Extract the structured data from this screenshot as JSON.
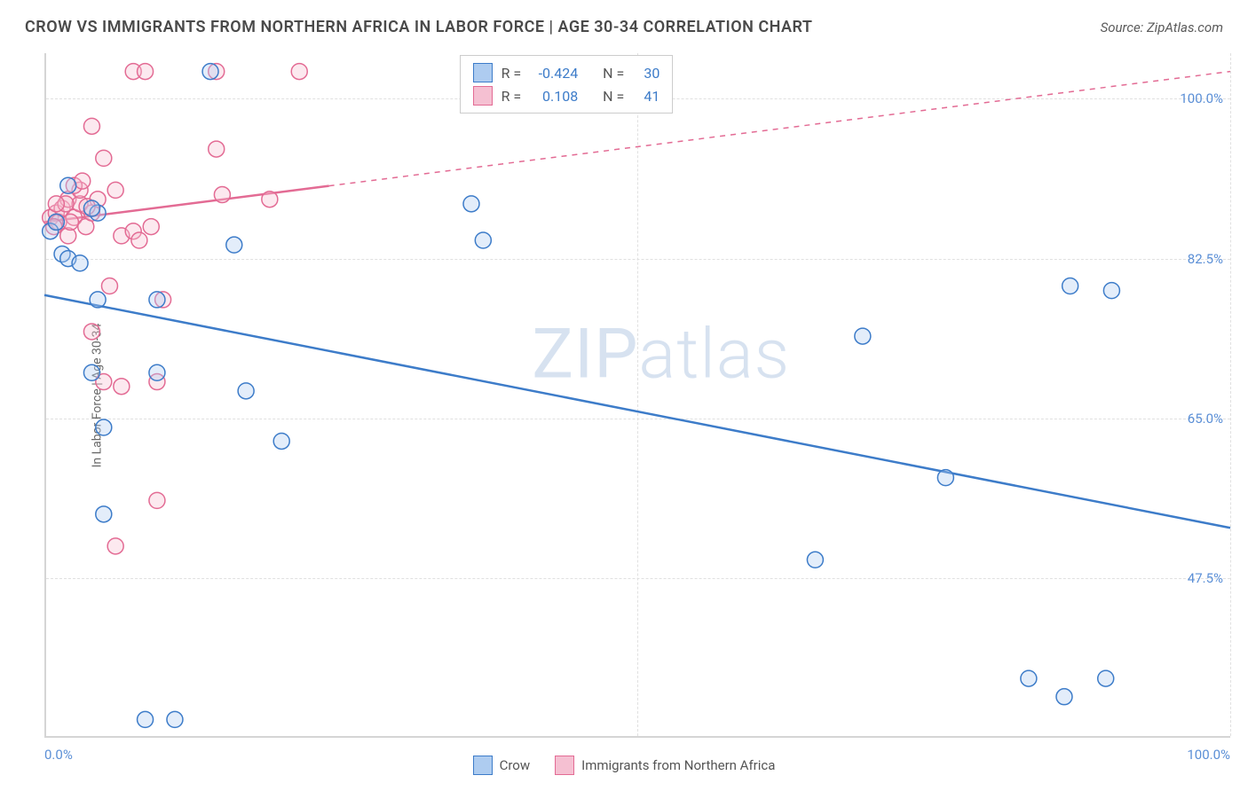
{
  "header": {
    "title": "CROW VS IMMIGRANTS FROM NORTHERN AFRICA IN LABOR FORCE | AGE 30-34 CORRELATION CHART",
    "source": "Source: ZipAtlas.com"
  },
  "watermark": {
    "bold": "ZIP",
    "thin": "atlas"
  },
  "chart": {
    "type": "scatter",
    "background_color": "#ffffff",
    "grid_color": "#e0e0e0",
    "axis_color": "#d5d5d5",
    "xlim": [
      0,
      100
    ],
    "ylim": [
      30,
      105
    ],
    "x_ticks": [
      0,
      50,
      100
    ],
    "x_tick_labels": [
      "0.0%",
      "",
      "100.0%"
    ],
    "y_ticks": [
      47.5,
      65.0,
      82.5,
      100.0
    ],
    "y_tick_labels": [
      "47.5%",
      "65.0%",
      "82.5%",
      "100.0%"
    ],
    "y_label": "In Labor Force | Age 30-34",
    "tick_label_color": "#5b8fd6",
    "tick_fontsize": 15,
    "label_fontsize": 14,
    "label_color": "#6a6a6a",
    "marker_radius": 9,
    "marker_stroke_width": 1.5,
    "marker_fill_opacity": 0.35,
    "trend_line_width": 2.5,
    "trend_dash_width": 1.5
  },
  "series": {
    "crow": {
      "label": "Crow",
      "color": "#5b8fd6",
      "stroke": "#3d7cc9",
      "fill": "#aeccf0",
      "R": "-0.424",
      "N": "30",
      "trend": {
        "x1": 0,
        "y1": 78.5,
        "x2": 100,
        "y2": 53.0,
        "solid_until_x": 100
      },
      "points": [
        [
          0.5,
          85.5
        ],
        [
          1.0,
          86.5
        ],
        [
          1.5,
          83.0
        ],
        [
          2.0,
          82.5
        ],
        [
          3.0,
          82.0
        ],
        [
          4.5,
          87.5
        ],
        [
          4.5,
          78.0
        ],
        [
          9.5,
          78.0
        ],
        [
          14.0,
          103.0
        ],
        [
          16.0,
          84.0
        ],
        [
          5.0,
          64.0
        ],
        [
          17.0,
          68.0
        ],
        [
          4.0,
          70.0
        ],
        [
          9.5,
          70.0
        ],
        [
          20.0,
          62.5
        ],
        [
          5.0,
          54.5
        ],
        [
          36.0,
          88.5
        ],
        [
          37.0,
          84.5
        ],
        [
          65.0,
          49.5
        ],
        [
          76.0,
          58.5
        ],
        [
          69.0,
          74.0
        ],
        [
          86.5,
          79.5
        ],
        [
          90.0,
          79.0
        ],
        [
          83.0,
          36.5
        ],
        [
          86.0,
          34.5
        ],
        [
          89.5,
          36.5
        ],
        [
          8.5,
          32.0
        ],
        [
          11.0,
          32.0
        ],
        [
          2.0,
          90.5
        ],
        [
          4.0,
          88.0
        ]
      ]
    },
    "immigrants": {
      "label": "Immigrants from Northern Africa",
      "color": "#e68aa5",
      "stroke": "#e36b94",
      "fill": "#f5c0d2",
      "R": "0.108",
      "N": "41",
      "trend": {
        "x1": 0,
        "y1": 86.5,
        "x2": 100,
        "y2": 103.0,
        "solid_until_x": 24
      },
      "points": [
        [
          0.5,
          87.0
        ],
        [
          1.0,
          87.5
        ],
        [
          1.2,
          86.5
        ],
        [
          1.5,
          88.0
        ],
        [
          2.0,
          89.0
        ],
        [
          2.5,
          87.0
        ],
        [
          3.0,
          88.5
        ],
        [
          3.5,
          86.0
        ],
        [
          3.0,
          90.0
        ],
        [
          4.0,
          87.5
        ],
        [
          4.5,
          89.0
        ],
        [
          1.8,
          88.5
        ],
        [
          4.0,
          97.0
        ],
        [
          5.0,
          93.5
        ],
        [
          6.0,
          90.0
        ],
        [
          7.5,
          103.0
        ],
        [
          8.5,
          103.0
        ],
        [
          9.0,
          86.0
        ],
        [
          14.5,
          94.5
        ],
        [
          14.5,
          103.0
        ],
        [
          15.0,
          89.5
        ],
        [
          21.5,
          103.0
        ],
        [
          19.0,
          89.0
        ],
        [
          5.5,
          79.5
        ],
        [
          6.5,
          85.0
        ],
        [
          7.5,
          85.5
        ],
        [
          8.0,
          84.5
        ],
        [
          10.0,
          78.0
        ],
        [
          2.0,
          85.0
        ],
        [
          4.0,
          74.5
        ],
        [
          5.0,
          69.0
        ],
        [
          6.5,
          68.5
        ],
        [
          9.5,
          69.0
        ],
        [
          9.5,
          56.0
        ],
        [
          6.0,
          51.0
        ],
        [
          2.5,
          90.5
        ],
        [
          1.0,
          88.5
        ],
        [
          0.8,
          86.0
        ],
        [
          2.2,
          86.5
        ],
        [
          3.2,
          91.0
        ],
        [
          3.6,
          88.2
        ]
      ]
    }
  },
  "stats_box": {
    "rows": [
      {
        "swatch": "crow",
        "R": "-0.424",
        "N": "30"
      },
      {
        "swatch": "immigrants",
        "R": "0.108",
        "N": "41"
      }
    ],
    "labels": {
      "R": "R =",
      "N": "N ="
    }
  },
  "legend": [
    {
      "swatch": "crow",
      "label": "Crow"
    },
    {
      "swatch": "immigrants",
      "label": "Immigrants from Northern Africa"
    }
  ]
}
